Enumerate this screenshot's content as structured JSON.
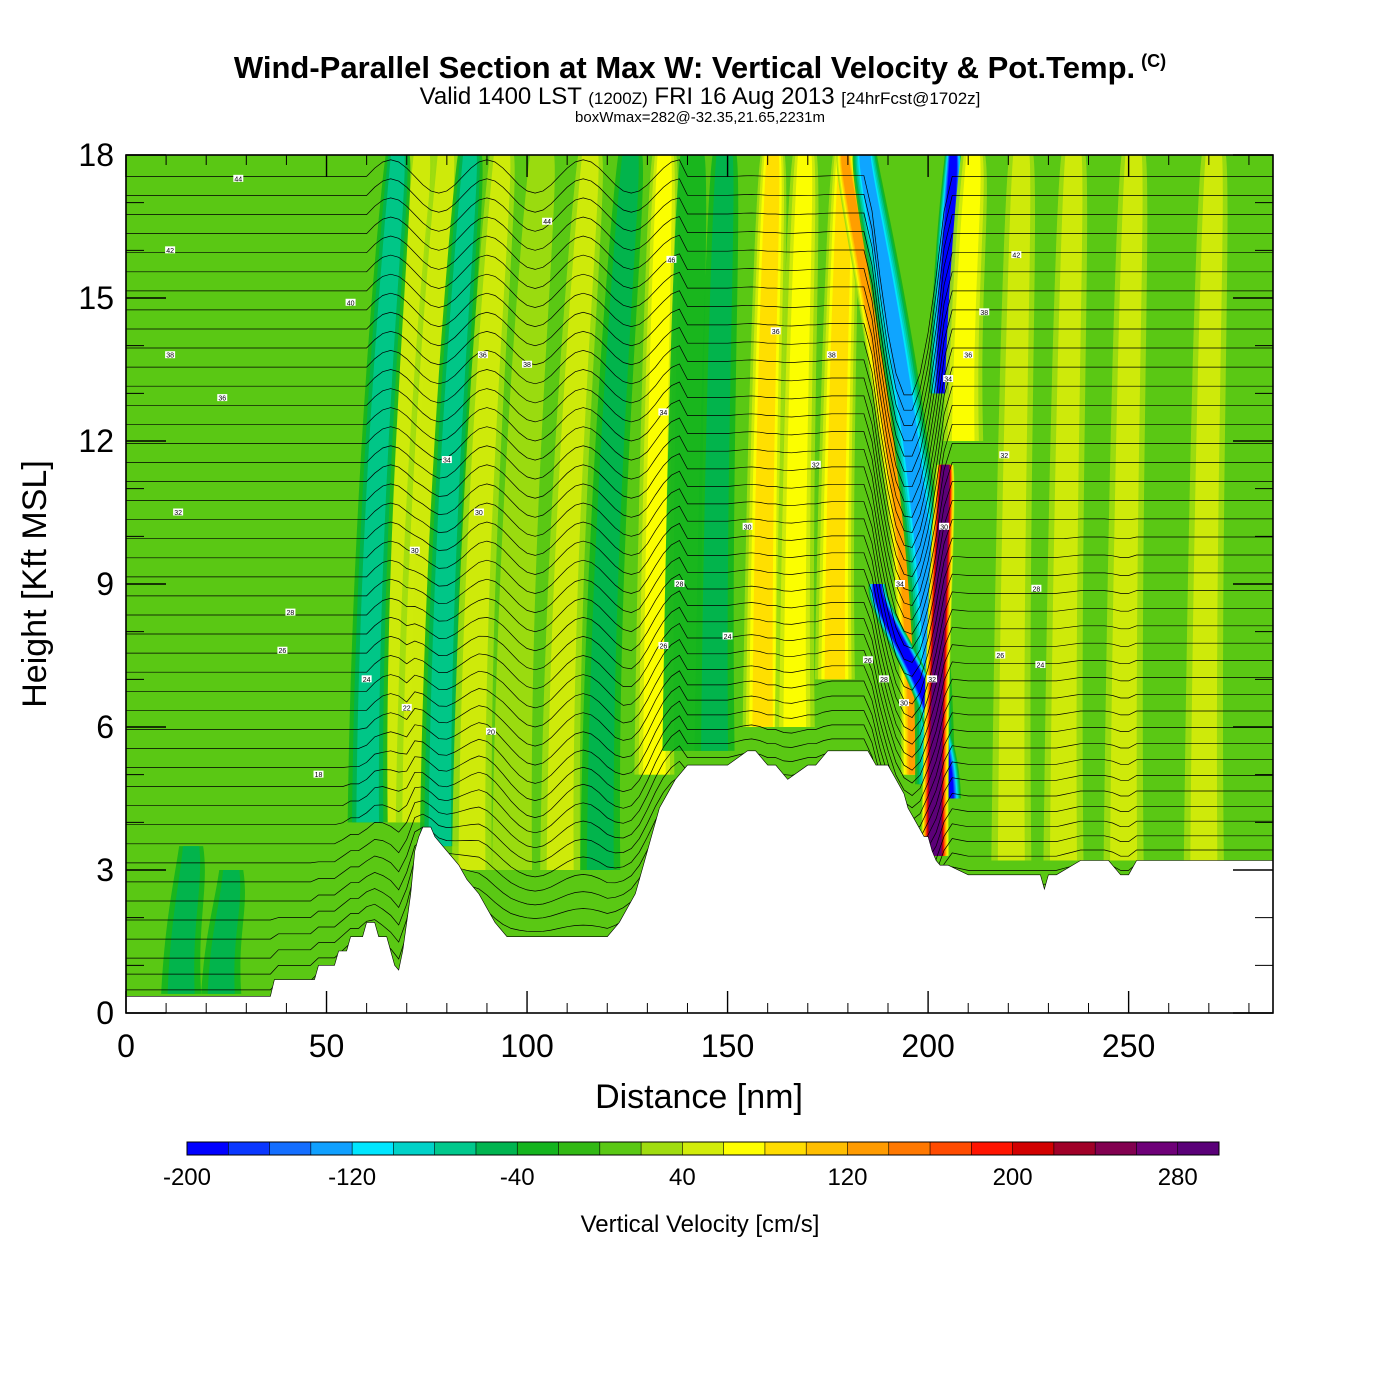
{
  "header": {
    "title": "Wind-Parallel Section at Max W: Vertical Velocity & Pot.Temp.",
    "copyright": "(C)",
    "valid_prefix": "Valid 1400 LST",
    "valid_utc": "(1200Z)",
    "valid_date": "FRI 16 Aug 2013",
    "forecast": "[24hrFcst@1702z]",
    "box_wmax": "boxWmax=282@-32.35,21.65,2231m"
  },
  "chart_data": {
    "type": "heatmap",
    "title": "Wind-Parallel Section at Max W: Vertical Velocity & Pot.Temp.",
    "xlabel": "Distance [nm]",
    "ylabel": "Height [Kft MSL]",
    "xlim": [
      0,
      286
    ],
    "ylim": [
      0,
      18
    ],
    "x_ticks": [
      0,
      50,
      100,
      150,
      200,
      250
    ],
    "y_ticks": [
      0,
      3,
      6,
      9,
      12,
      15,
      18
    ],
    "x_tick_labels": [
      "0",
      "50",
      "100",
      "150",
      "200",
      "250"
    ],
    "y_tick_labels": [
      "0",
      "3",
      "6",
      "9",
      "12",
      "15",
      "18"
    ],
    "colorbar": {
      "label": "Vertical Velocity [cm/s]",
      "min": -200,
      "max": 300,
      "step": 20,
      "tick_values": [
        -200,
        -120,
        -40,
        40,
        120,
        200,
        280
      ],
      "tick_labels": [
        "-200",
        "-120",
        "-40",
        "40",
        "120",
        "200",
        "280"
      ],
      "colors": [
        "#0000ff",
        "#0a37ff",
        "#146eff",
        "#10a0ff",
        "#00e6ff",
        "#00d2c8",
        "#00c88c",
        "#00b450",
        "#14b41e",
        "#32b914",
        "#5ac814",
        "#a0dc0f",
        "#d2ec0a",
        "#ffff00",
        "#ffdc00",
        "#ffbe00",
        "#ff9b00",
        "#ff7800",
        "#ff4b00",
        "#ff1400",
        "#d20000",
        "#a00028",
        "#820050",
        "#6e0078",
        "#5a0078"
      ]
    },
    "terrain": {
      "x": [
        0,
        10,
        20,
        30,
        36,
        37,
        47,
        48,
        52,
        53,
        55,
        56,
        59,
        60,
        62,
        63,
        65,
        66,
        67,
        68,
        69,
        70,
        71,
        72,
        73,
        74,
        75,
        76,
        77,
        80,
        83,
        85,
        88,
        90,
        92,
        95,
        100,
        105,
        110,
        115,
        120,
        123,
        125,
        127,
        129,
        131,
        132,
        133,
        135,
        137,
        140,
        145,
        150,
        155,
        157,
        160,
        162,
        165,
        170,
        172,
        175,
        180,
        185,
        187,
        190,
        192,
        194,
        195,
        197,
        199,
        200,
        201,
        202,
        203,
        205,
        210,
        215,
        220,
        228,
        229,
        230,
        232,
        238,
        240,
        245,
        248,
        250,
        252,
        255,
        260,
        265,
        270,
        275,
        280,
        286
      ],
      "height_kft": [
        0.35,
        0.35,
        0.35,
        0.35,
        0.35,
        0.7,
        0.7,
        1.0,
        1.0,
        1.3,
        1.3,
        1.6,
        1.6,
        1.9,
        1.9,
        1.6,
        1.6,
        1.3,
        1.0,
        0.9,
        1.3,
        1.9,
        2.5,
        3.4,
        3.7,
        3.9,
        3.9,
        3.9,
        3.7,
        3.4,
        3.1,
        2.8,
        2.5,
        2.2,
        1.9,
        1.6,
        1.6,
        1.6,
        1.6,
        1.6,
        1.6,
        1.9,
        2.2,
        2.5,
        3.1,
        3.7,
        4.0,
        4.3,
        4.6,
        4.9,
        5.2,
        5.2,
        5.2,
        5.5,
        5.5,
        5.2,
        5.2,
        4.9,
        5.2,
        5.2,
        5.5,
        5.5,
        5.5,
        5.2,
        5.2,
        4.9,
        4.6,
        4.3,
        4.0,
        3.7,
        3.7,
        3.4,
        3.2,
        3.1,
        3.1,
        2.9,
        2.9,
        2.9,
        2.9,
        2.6,
        2.9,
        2.9,
        3.2,
        3.2,
        3.2,
        2.9,
        2.9,
        3.2,
        3.2,
        3.2,
        3.2,
        3.2,
        3.2,
        3.2,
        3.2
      ]
    },
    "velocity_features": [
      {
        "x": 70,
        "y_kft": [
          4.0,
          18
        ],
        "peak": 40
      },
      {
        "x": 76,
        "y_kft": [
          4.0,
          18
        ],
        "peak": 50
      },
      {
        "x": 64,
        "y_kft": [
          4.0,
          18
        ],
        "peak": -70
      },
      {
        "x": 82,
        "y_kft": [
          3.5,
          18
        ],
        "peak": -60
      },
      {
        "x": 90,
        "y_kft": [
          3.0,
          18
        ],
        "peak": 50
      },
      {
        "x": 100,
        "y_kft": [
          3.0,
          18
        ],
        "peak": 30
      },
      {
        "x": 112,
        "y_kft": [
          3.0,
          18
        ],
        "peak": 40
      },
      {
        "x": 122,
        "y_kft": [
          3.0,
          18
        ],
        "peak": -50
      },
      {
        "x": 133,
        "y_kft": [
          5.0,
          18
        ],
        "peak": 60
      },
      {
        "x": 140,
        "y_kft": [
          5.5,
          18
        ],
        "peak": -30
      },
      {
        "x": 148,
        "y_kft": [
          5.5,
          18
        ],
        "peak": -40
      },
      {
        "x": 160,
        "y_kft": [
          6.0,
          18
        ],
        "peak": 80
      },
      {
        "x": 168,
        "y_kft": [
          6.0,
          18
        ],
        "peak": 60
      },
      {
        "x": 178,
        "y_kft": [
          7.0,
          18
        ],
        "peak": 80
      },
      {
        "x": 188,
        "y_kft": [
          5.0,
          18
        ],
        "peak": 130
      },
      {
        "x": 193,
        "y_kft": [
          4.8,
          18
        ],
        "peak": -120
      },
      {
        "x": 196,
        "y_kft": [
          4.5,
          9.0
        ],
        "peak": -200
      },
      {
        "x": 203,
        "y_kft": [
          3.3,
          11.5
        ],
        "peak": 282
      },
      {
        "x": 205,
        "y_kft": [
          13.0,
          18
        ],
        "peak": -180
      },
      {
        "x": 210,
        "y_kft": [
          12.0,
          18
        ],
        "peak": 60
      },
      {
        "x": 222,
        "y_kft": [
          3.2,
          18
        ],
        "peak": 40
      },
      {
        "x": 235,
        "y_kft": [
          3.2,
          18
        ],
        "peak": 40
      },
      {
        "x": 250,
        "y_kft": [
          3.2,
          18
        ],
        "peak": 40
      },
      {
        "x": 270,
        "y_kft": [
          3.2,
          18
        ],
        "peak": 40
      },
      {
        "x": 15,
        "y_kft": [
          0.4,
          3.5
        ],
        "peak": -40
      },
      {
        "x": 25,
        "y_kft": [
          0.4,
          3.0
        ],
        "peak": -40
      }
    ],
    "theta_contours": {
      "label_values": [
        "34",
        "42",
        "40",
        "38",
        "36",
        "32",
        "30",
        "28",
        "26",
        "24",
        "22",
        "20",
        "18",
        "44",
        "46"
      ],
      "labels": [
        {
          "text": "44",
          "x": 28,
          "y": 17.5
        },
        {
          "text": "42",
          "x": 11,
          "y": 16.0
        },
        {
          "text": "40",
          "x": 56,
          "y": 14.9
        },
        {
          "text": "38",
          "x": 11,
          "y": 13.8
        },
        {
          "text": "36",
          "x": 24,
          "y": 12.9
        },
        {
          "text": "32",
          "x": 13,
          "y": 10.5
        },
        {
          "text": "30",
          "x": 72,
          "y": 9.7
        },
        {
          "text": "28",
          "x": 41,
          "y": 8.4
        },
        {
          "text": "26",
          "x": 39,
          "y": 7.6
        },
        {
          "text": "24",
          "x": 60,
          "y": 7.0
        },
        {
          "text": "22",
          "x": 70,
          "y": 6.4
        },
        {
          "text": "20",
          "x": 91,
          "y": 5.9
        },
        {
          "text": "18",
          "x": 48,
          "y": 5.0
        },
        {
          "text": "44",
          "x": 105,
          "y": 16.6
        },
        {
          "text": "46",
          "x": 136,
          "y": 15.8
        },
        {
          "text": "38",
          "x": 100,
          "y": 13.6
        },
        {
          "text": "36",
          "x": 89,
          "y": 13.8
        },
        {
          "text": "34",
          "x": 80,
          "y": 11.6
        },
        {
          "text": "34",
          "x": 134,
          "y": 12.6
        },
        {
          "text": "30",
          "x": 88,
          "y": 10.5
        },
        {
          "text": "30",
          "x": 155,
          "y": 10.2
        },
        {
          "text": "32",
          "x": 172,
          "y": 11.5
        },
        {
          "text": "28",
          "x": 138,
          "y": 9.0
        },
        {
          "text": "26",
          "x": 134,
          "y": 7.7
        },
        {
          "text": "24",
          "x": 150,
          "y": 7.9
        },
        {
          "text": "36",
          "x": 162,
          "y": 14.3
        },
        {
          "text": "38",
          "x": 176,
          "y": 13.8
        },
        {
          "text": "34",
          "x": 193,
          "y": 9.0
        },
        {
          "text": "26",
          "x": 185,
          "y": 7.4
        },
        {
          "text": "28",
          "x": 189,
          "y": 7.0
        },
        {
          "text": "30",
          "x": 194,
          "y": 6.5
        },
        {
          "text": "32",
          "x": 201,
          "y": 7.0
        },
        {
          "text": "30",
          "x": 204,
          "y": 10.2
        },
        {
          "text": "34",
          "x": 205,
          "y": 13.3
        },
        {
          "text": "36",
          "x": 210,
          "y": 13.8
        },
        {
          "text": "38",
          "x": 214,
          "y": 14.7
        },
        {
          "text": "42",
          "x": 222,
          "y": 15.9
        },
        {
          "text": "32",
          "x": 219,
          "y": 11.7
        },
        {
          "text": "28",
          "x": 227,
          "y": 8.9
        },
        {
          "text": "26",
          "x": 218,
          "y": 7.5
        },
        {
          "text": "24",
          "x": 228,
          "y": 7.3
        }
      ]
    }
  }
}
